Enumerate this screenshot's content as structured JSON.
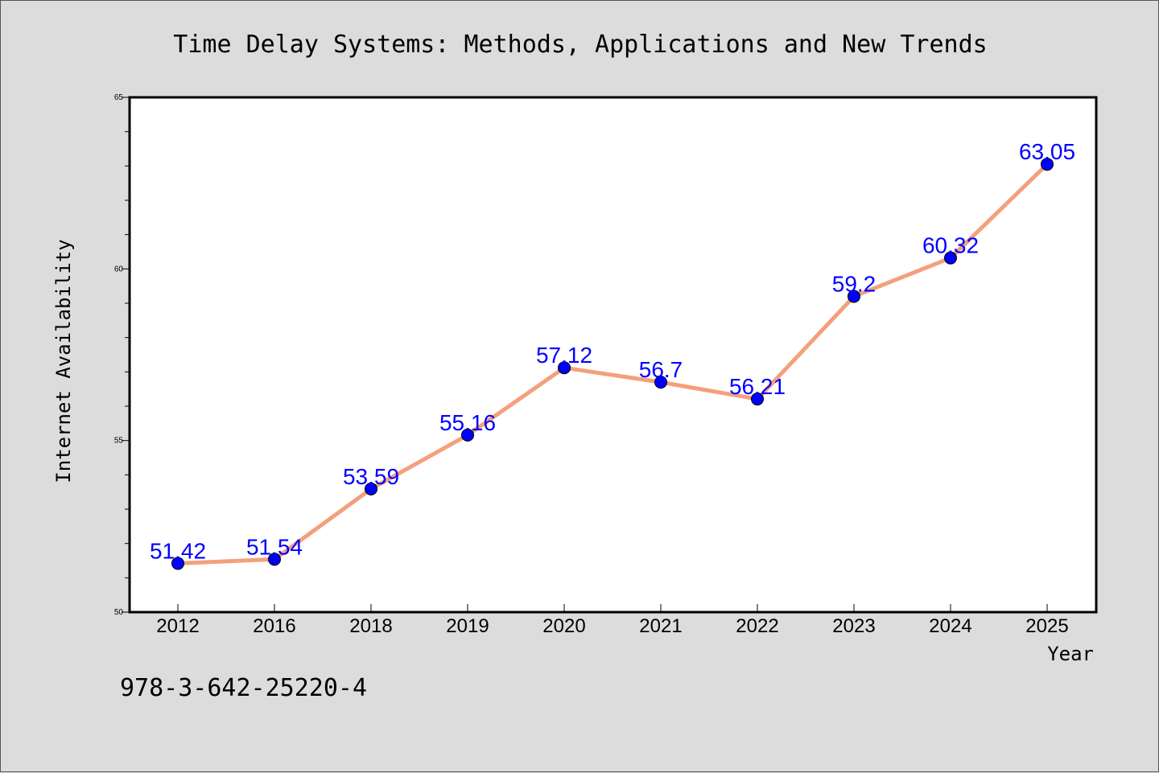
{
  "colors": {
    "background": "#dcdcdc",
    "plot_background": "#ffffff",
    "line": "#f4a07c",
    "marker": "#0000ff",
    "data_label": "#0000ff"
  },
  "footer_text": "978-3-642-25220-4",
  "chart_data": {
    "type": "line",
    "title": "Time Delay Systems: Methods, Applications and New Trends",
    "xlabel": "Year",
    "ylabel": "Internet Availability",
    "categories": [
      "2012",
      "2016",
      "2018",
      "2019",
      "2020",
      "2021",
      "2022",
      "2023",
      "2024",
      "2025"
    ],
    "series": [
      {
        "values": [
          51.42,
          51.54,
          53.59,
          55.16,
          57.12,
          56.7,
          56.21,
          59.2,
          60.32,
          63.05
        ],
        "data_labels": [
          "51.42",
          "51.54",
          "53.59",
          "55.16",
          "57.12",
          "56.7",
          "56.21",
          "59.2",
          "60.32",
          "63.05"
        ]
      }
    ],
    "ylim": [
      50,
      65
    ],
    "yticks": [
      "50",
      "55",
      "60",
      "65"
    ],
    "grid": false,
    "legend": "none"
  }
}
